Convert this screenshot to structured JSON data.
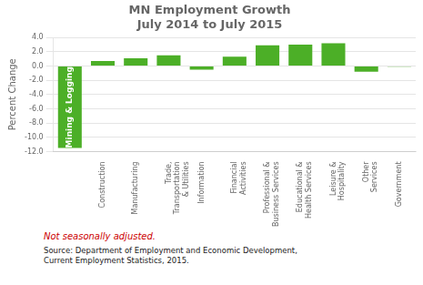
{
  "chart_data": {
    "type": "bar",
    "title": "MN Employment Growth\nJuly 2014 to July 2015",
    "categories": [
      null,
      "Construction",
      "Manufacturing",
      "Trade,\nTransportation\n& Utilities",
      "Information",
      "Financial\nActivities",
      "Professional &\nBusiness Services",
      "Educational &\nHealth Services",
      "Leisure &\nHospitality",
      "Other\nServices",
      "Government"
    ],
    "values": [
      -11.5,
      0.7,
      1.1,
      1.5,
      -0.5,
      1.3,
      2.9,
      3.0,
      3.2,
      -0.8,
      -0.1
    ],
    "color": "#4caf27",
    "ylabel": "Percent Change",
    "ylim": [
      -12.0,
      4.0
    ],
    "yticks": [
      {
        "value": -12,
        "label": "-12.0"
      },
      {
        "value": -10,
        "label": "-10.0"
      },
      {
        "value": -8,
        "label": "-8.0"
      },
      {
        "value": -6,
        "label": "-6.0"
      },
      {
        "value": -4,
        "label": "-4.0"
      },
      {
        "value": -2,
        "label": "-2.0"
      },
      {
        "value": 0,
        "label": "0.0"
      },
      {
        "value": 2,
        "label": "2.0"
      },
      {
        "value": 4,
        "label": "4.0"
      }
    ],
    "grid": true,
    "annotations": [
      {
        "text": "Mining & Logging",
        "color": "#ffffff"
      }
    ],
    "note": {
      "text": "Not seasonally adjusted.",
      "color": "#cc0000"
    },
    "source": "Source: Department of Employment and Economic Development,\nCurrent Employment Statistics, 2015."
  }
}
